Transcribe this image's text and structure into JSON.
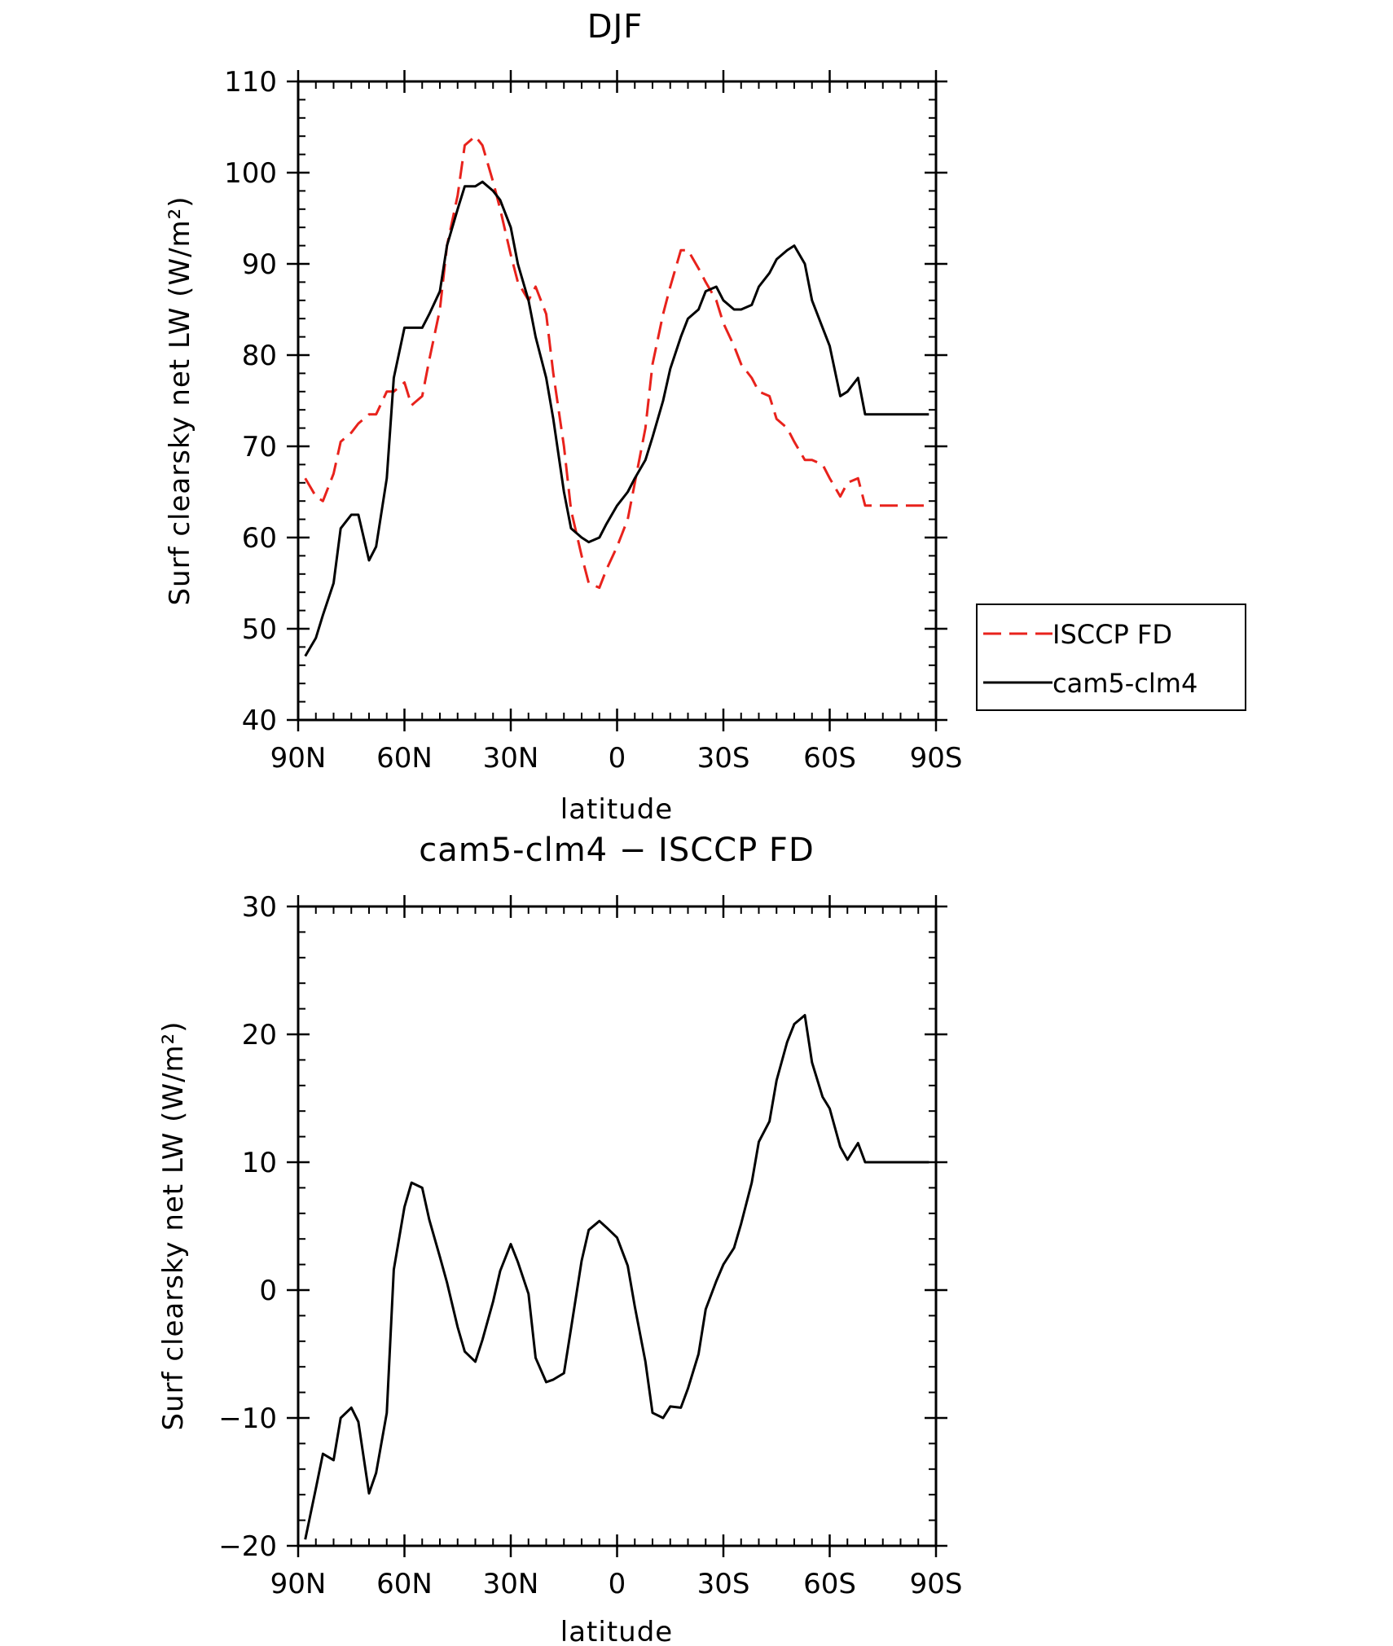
{
  "chart_data": [
    {
      "type": "line",
      "title": "DJF",
      "xlabel": "latitude",
      "ylabel": "Surf clearsky net LW (W/m²)",
      "xlim": [
        90,
        -90
      ],
      "ylim": [
        40,
        110
      ],
      "yticks": [
        40,
        50,
        60,
        70,
        80,
        90,
        100,
        110
      ],
      "xticks": [
        90,
        60,
        30,
        0,
        -30,
        -60,
        -90
      ],
      "xtick_labels": [
        "90N",
        "60N",
        "30N",
        "0",
        "30S",
        "60S",
        "90S"
      ],
      "legend": {
        "placement": "right-outside"
      },
      "x": [
        88,
        85,
        83,
        80,
        78,
        75,
        73,
        70,
        68,
        65,
        63,
        60,
        58,
        55,
        53,
        50,
        48,
        45,
        43,
        40,
        38,
        35,
        33,
        30,
        28,
        25,
        23,
        20,
        18,
        15,
        13,
        10,
        8,
        5,
        3,
        0,
        -3,
        -5,
        -8,
        -10,
        -13,
        -15,
        -18,
        -20,
        -23,
        -25,
        -28,
        -30,
        -33,
        -35,
        -38,
        -40,
        -43,
        -45,
        -48,
        -50,
        -53,
        -55,
        -58,
        -60,
        -63,
        -65,
        -68,
        -70,
        -73,
        -75,
        -78,
        -80,
        -83,
        -85,
        -88
      ],
      "series": [
        {
          "name": "ISCCP FD",
          "color": "#e8221c",
          "dash": "dashed",
          "values": [
            66.5,
            64.5,
            64.0,
            67.0,
            70.5,
            71.5,
            72.5,
            73.5,
            73.5,
            76.0,
            76.0,
            77.0,
            74.5,
            75.5,
            79.5,
            85.0,
            92.0,
            97.5,
            103.0,
            104.0,
            103.0,
            99.0,
            96.0,
            91.0,
            88.0,
            86.0,
            87.5,
            84.5,
            78.0,
            70.0,
            63.0,
            58.0,
            55.0,
            54.5,
            56.5,
            59.0,
            62.0,
            66.0,
            72.0,
            79.0,
            84.5,
            87.5,
            91.5,
            91.5,
            89.5,
            88.0,
            86.0,
            83.5,
            81.0,
            79.0,
            77.5,
            76.0,
            75.5,
            73.0,
            72.0,
            70.5,
            68.5,
            68.5,
            68.0,
            66.5,
            64.5,
            66.0,
            66.5,
            63.5,
            63.5,
            63.5,
            63.5,
            63.5,
            63.5,
            63.5,
            63.5
          ]
        },
        {
          "name": "cam5-clm4",
          "color": "#000000",
          "dash": "solid",
          "values": [
            47.0,
            49.0,
            51.5,
            55.0,
            61.0,
            62.5,
            62.5,
            57.5,
            59.0,
            66.5,
            77.5,
            83.0,
            83.0,
            83.0,
            84.5,
            87.0,
            92.0,
            96.0,
            98.5,
            98.5,
            99.0,
            98.0,
            97.0,
            94.0,
            90.0,
            86.0,
            82.0,
            77.5,
            73.0,
            65.0,
            61.0,
            60.0,
            59.5,
            60.0,
            61.5,
            63.5,
            65.0,
            66.5,
            68.5,
            71.0,
            75.0,
            78.5,
            82.0,
            84.0,
            85.0,
            87.0,
            87.5,
            86.0,
            85.0,
            85.0,
            85.5,
            87.5,
            89.0,
            90.5,
            91.5,
            92.0,
            90.0,
            86.0,
            83.0,
            81.0,
            75.5,
            76.0,
            77.5,
            73.5,
            73.5,
            73.5,
            73.5,
            73.5,
            73.5,
            73.5,
            73.5
          ]
        }
      ]
    },
    {
      "type": "line",
      "title": "cam5-clm4 − ISCCP FD",
      "xlabel": "latitude",
      "ylabel": "Surf clearsky net LW (W/m²)",
      "xlim": [
        90,
        -90
      ],
      "ylim": [
        -20,
        30
      ],
      "yticks": [
        -20,
        -10,
        0,
        10,
        20,
        30
      ],
      "ytick_labels": [
        "−20",
        "−10",
        "0",
        "10",
        "20",
        "30"
      ],
      "xticks": [
        90,
        60,
        30,
        0,
        -30,
        -60,
        -90
      ],
      "xtick_labels": [
        "90N",
        "60N",
        "30N",
        "0",
        "30S",
        "60S",
        "90S"
      ],
      "x": [
        88,
        85,
        83,
        80,
        78,
        75,
        73,
        70,
        68,
        65,
        63,
        60,
        58,
        55,
        53,
        50,
        48,
        45,
        43,
        40,
        38,
        35,
        33,
        30,
        28,
        25,
        23,
        20,
        18,
        15,
        13,
        10,
        8,
        5,
        3,
        0,
        -3,
        -5,
        -8,
        -10,
        -13,
        -15,
        -18,
        -20,
        -23,
        -25,
        -28,
        -30,
        -33,
        -35,
        -38,
        -40,
        -43,
        -45,
        -48,
        -50,
        -53,
        -55,
        -58,
        -60,
        -63,
        -65,
        -68,
        -70,
        -73,
        -75,
        -78,
        -80,
        -83,
        -85,
        -88
      ],
      "series": [
        {
          "color": "#000000",
          "dash": "solid",
          "values": [
            -19.5,
            -15.5,
            -12.8,
            -13.3,
            -10.0,
            -9.2,
            -10.3,
            -15.9,
            -14.3,
            -9.6,
            1.6,
            6.5,
            8.4,
            8.0,
            5.5,
            2.6,
            0.6,
            -2.9,
            -4.8,
            -5.6,
            -3.9,
            -0.9,
            1.5,
            3.6,
            2.2,
            -0.3,
            -5.3,
            -7.2,
            -7.0,
            -6.5,
            -3.0,
            2.3,
            4.7,
            5.4,
            4.9,
            4.1,
            1.9,
            -1.3,
            -5.6,
            -9.6,
            -10.0,
            -9.1,
            -9.2,
            -7.7,
            -5.0,
            -1.5,
            0.7,
            2.0,
            3.3,
            5.2,
            8.4,
            11.6,
            13.2,
            16.4,
            19.4,
            20.8,
            21.5,
            17.8,
            15.1,
            14.2,
            11.2,
            10.2,
            11.5,
            10.0,
            10.0,
            10.0,
            10.0,
            10.0,
            10.0,
            10.0,
            10.0
          ]
        }
      ]
    }
  ]
}
